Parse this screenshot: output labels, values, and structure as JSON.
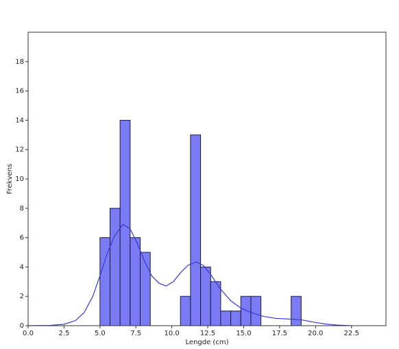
{
  "chart_data": {
    "type": "histogram",
    "xlabel": "Lengde (cm)",
    "ylabel": "Frekvens",
    "bins": [
      5.0,
      5.7,
      6.4,
      7.1,
      7.8,
      8.5,
      9.2,
      9.9,
      10.6,
      11.3,
      12.0,
      12.7,
      13.4,
      14.1,
      14.8,
      15.5,
      16.2,
      16.9,
      17.6,
      18.3,
      19.0
    ],
    "values": [
      6,
      8,
      14,
      6,
      5,
      0,
      0,
      0,
      2,
      13,
      4,
      3,
      1,
      1,
      2,
      2,
      0,
      0,
      0,
      2
    ],
    "color": "#7b7bf5",
    "edgecolor": "#1a1a3a",
    "kde": {
      "color": "#3838d8",
      "x": [
        0.0,
        1.5,
        2.5,
        3.3,
        3.9,
        4.5,
        5.0,
        5.5,
        6.0,
        6.6,
        7.1,
        7.6,
        8.1,
        8.6,
        9.1,
        9.6,
        10.1,
        10.6,
        11.1,
        11.7,
        12.2,
        12.7,
        13.3,
        14.1,
        14.8,
        15.5,
        16.3,
        17.2,
        18.2,
        19.0,
        20.0,
        20.8,
        21.5,
        22.5
      ],
      "values": [
        0.0,
        0.02,
        0.1,
        0.35,
        0.9,
        2.0,
        3.4,
        4.9,
        6.1,
        6.9,
        6.6,
        5.6,
        4.4,
        3.4,
        2.9,
        2.7,
        3.0,
        3.6,
        4.1,
        4.35,
        4.1,
        3.5,
        2.6,
        1.7,
        1.2,
        0.9,
        0.65,
        0.5,
        0.45,
        0.4,
        0.22,
        0.1,
        0.04,
        0.0
      ]
    },
    "xlim": [
      0,
      24.9
    ],
    "ylim": [
      0,
      20
    ],
    "xticks": [
      {
        "value": 0,
        "label": "0.0"
      },
      {
        "value": 2.5,
        "label": "2.5"
      },
      {
        "value": 5,
        "label": "5.0"
      },
      {
        "value": 7.5,
        "label": "7.5"
      },
      {
        "value": 10,
        "label": "10.0"
      },
      {
        "value": 12.5,
        "label": "12.5"
      },
      {
        "value": 15,
        "label": "15.0"
      },
      {
        "value": 17.5,
        "label": "17.5"
      },
      {
        "value": 20,
        "label": "20.0"
      },
      {
        "value": 22.5,
        "label": "22.5"
      }
    ],
    "yticks": [
      0,
      2,
      4,
      6,
      8,
      10,
      12,
      14,
      16,
      18
    ]
  }
}
